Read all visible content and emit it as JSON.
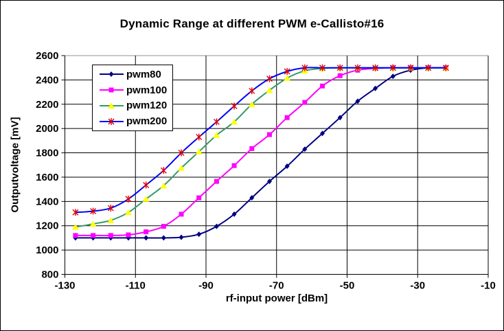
{
  "chart_data": {
    "type": "line",
    "title": "Dynamic Range at different PWM e-Callisto#16",
    "xlabel": "rf-input power [dBm]",
    "ylabel": "Outputvoltage [mV]",
    "grid": true,
    "legend_position": "inner-top-left",
    "x_axis": {
      "min": -130,
      "max": -10,
      "tick_step": 20,
      "ticks": [
        -130,
        -110,
        -90,
        -70,
        -50,
        -30,
        -10
      ]
    },
    "y_axis": {
      "min": 800,
      "max": 2600,
      "tick_step": 200,
      "ticks": [
        800,
        1000,
        1200,
        1400,
        1600,
        1800,
        2000,
        2200,
        2400,
        2600
      ]
    },
    "x": [
      -127,
      -122,
      -117,
      -112,
      -107,
      -102,
      -97,
      -92,
      -87,
      -82,
      -77,
      -72,
      -67,
      -62,
      -57,
      -52,
      -47,
      -42,
      -37,
      -32,
      -27,
      -22
    ],
    "series": [
      {
        "name": "pwm80",
        "line_color": "#000080",
        "marker": "diamond",
        "marker_color": "#000080",
        "values": [
          1100,
          1100,
          1100,
          1100,
          1100,
          1100,
          1105,
          1130,
          1195,
          1295,
          1430,
          1565,
          1690,
          1830,
          1960,
          2090,
          2225,
          2330,
          2430,
          2480,
          2500,
          2500
        ]
      },
      {
        "name": "pwm100",
        "line_color": "#FF00FF",
        "marker": "square",
        "marker_color": "#FF00FF",
        "values": [
          1120,
          1120,
          1120,
          1125,
          1150,
          1195,
          1295,
          1430,
          1565,
          1695,
          1835,
          1950,
          2090,
          2215,
          2350,
          2435,
          2480,
          2495,
          2500,
          2500,
          2500,
          2500
        ]
      },
      {
        "name": "pwm120",
        "line_color": "#339966",
        "marker": "triangle",
        "marker_color": "#FFFF00",
        "values": [
          1190,
          1215,
          1245,
          1310,
          1420,
          1530,
          1675,
          1810,
          1945,
          2055,
          2200,
          2315,
          2415,
          2475,
          2495,
          2500,
          2500,
          2500,
          2500,
          2500,
          2500,
          2500
        ]
      },
      {
        "name": "pwm200",
        "line_color": "#0000FF",
        "marker": "star",
        "marker_color": "#DD0000",
        "values": [
          1310,
          1320,
          1345,
          1420,
          1535,
          1655,
          1800,
          1930,
          2055,
          2185,
          2310,
          2410,
          2470,
          2500,
          2500,
          2500,
          2500,
          2500,
          2500,
          2500,
          2500,
          2500
        ]
      }
    ],
    "colors": {
      "grid": "#000000",
      "plot_top_border": "#909090",
      "text": "#000000",
      "background": "#FFFFFF"
    }
  }
}
